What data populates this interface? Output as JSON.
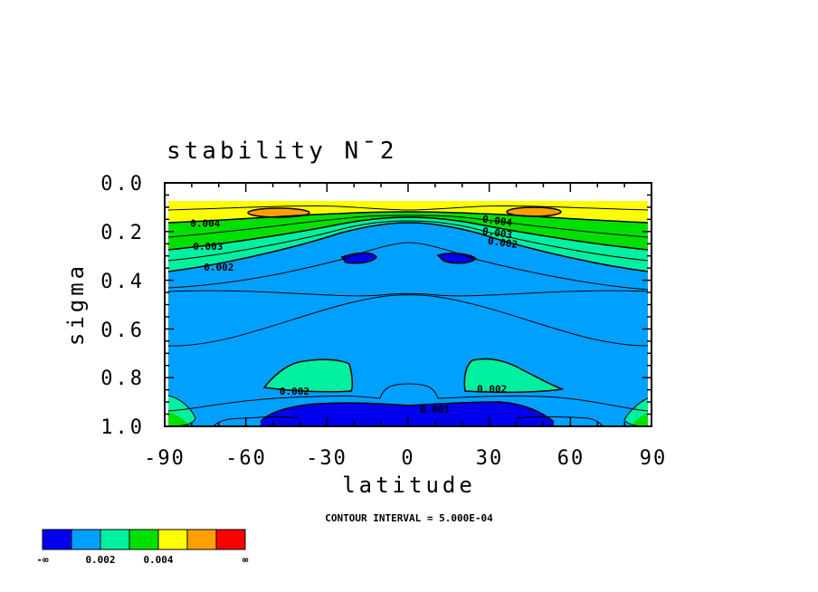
{
  "chart_data": {
    "type": "contour",
    "title": "stability N¯2",
    "xlabel": "latitude",
    "ylabel": "sigma",
    "xlim": [
      -90,
      90
    ],
    "ylim": [
      1.0,
      0.0
    ],
    "x_ticks": [
      "-90",
      "-60",
      "-30",
      "0",
      "30",
      "60",
      "90"
    ],
    "y_ticks": [
      "0.0",
      "0.2",
      "0.4",
      "0.6",
      "0.8",
      "1.0"
    ],
    "contour_interval_text": "CONTOUR INTERVAL = 5.000E-04",
    "contour_labels": [
      {
        "text": "0.004",
        "lat": -75,
        "sigma": 0.165
      },
      {
        "text": "0.003",
        "lat": -74,
        "sigma": 0.26
      },
      {
        "text": "0.002",
        "lat": -70,
        "sigma": 0.345
      },
      {
        "text": "0.004",
        "lat": 33,
        "sigma": 0.155
      },
      {
        "text": "0.003",
        "lat": 33,
        "sigma": 0.205
      },
      {
        "text": "0.002",
        "lat": 35,
        "sigma": 0.245
      },
      {
        "text": "0.002",
        "lat": -42,
        "sigma": 0.855
      },
      {
        "text": "0.002",
        "lat": 31,
        "sigma": 0.845
      },
      {
        "text": "0.001",
        "lat": 10,
        "sigma": 0.93
      }
    ],
    "legend": {
      "colors": [
        "#0000ee",
        "#00a0ff",
        "#00f0a0",
        "#00e000",
        "#ffff00",
        "#ffa000",
        "#ff0000"
      ],
      "labels": [
        "-∞",
        "0.002",
        "0.004",
        "∞"
      ]
    },
    "background_level_color": "#00a0ff"
  }
}
